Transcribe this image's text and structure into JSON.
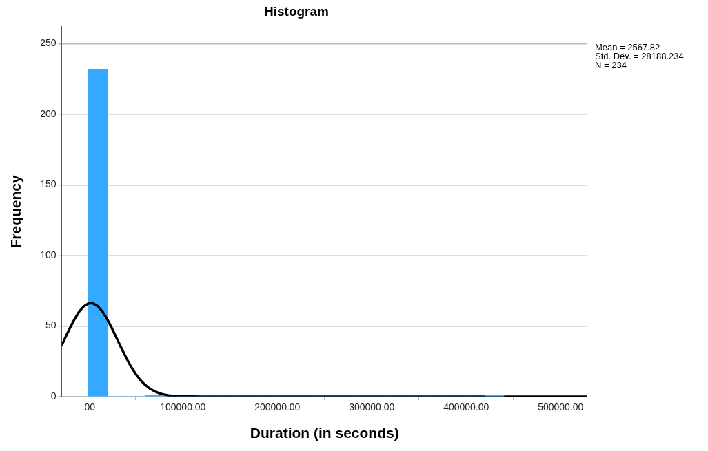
{
  "chart_data": {
    "type": "histogram",
    "title": "Histogram",
    "xlabel": "Duration (in seconds)",
    "ylabel": "Frequency",
    "bins": [
      0,
      20000,
      40000,
      60000,
      80000,
      100000,
      120000,
      140000,
      160000,
      180000,
      200000,
      220000,
      240000,
      260000,
      280000,
      300000,
      320000,
      340000,
      360000,
      380000,
      400000,
      420000,
      440000
    ],
    "values": [
      232,
      0,
      0,
      1,
      0,
      0,
      0,
      0,
      0,
      0,
      0,
      0,
      0,
      0,
      0,
      0,
      0,
      0,
      0,
      0,
      0,
      1
    ],
    "color": "#33aaff",
    "series": [
      {
        "type": "line",
        "color": "#000000",
        "x": [
          -28000,
          -25000,
          -20000,
          -15000,
          -10000,
          -5000,
          0,
          2568,
          5000,
          10000,
          15000,
          20000,
          25000,
          30000,
          35000,
          40000,
          45000,
          50000,
          55000,
          60000,
          65000,
          70000,
          75000,
          80000,
          85000,
          90000,
          100000,
          120000,
          528000
        ],
        "values": [
          36.8,
          41.1,
          48.1,
          54.5,
          60.0,
          63.9,
          66.0,
          66.2,
          66.0,
          64.0,
          60.1,
          54.7,
          48.2,
          41.2,
          34.2,
          27.4,
          21.3,
          16.1,
          11.7,
          8.3,
          5.7,
          3.8,
          2.4,
          1.5,
          0.9,
          0.5,
          0.2,
          0,
          0
        ]
      }
    ],
    "xlim": [
      -28300,
      528300
    ],
    "xticks": [
      {
        "value": 0,
        "label": ".00"
      },
      {
        "value": 100000,
        "label": "100000.00"
      },
      {
        "value": 200000,
        "label": "200000.00"
      },
      {
        "value": 300000,
        "label": "300000.00"
      },
      {
        "value": 400000,
        "label": "400000.00"
      },
      {
        "value": 500000,
        "label": "500000.00"
      }
    ],
    "ylim": [
      0,
      262
    ],
    "yticks": [
      0,
      50,
      100,
      150,
      200,
      250
    ],
    "grid": "y",
    "legend": false,
    "annotations": [
      "Mean = 2567.82",
      "Std. Dev. = 28188.234",
      "N = 234"
    ]
  }
}
